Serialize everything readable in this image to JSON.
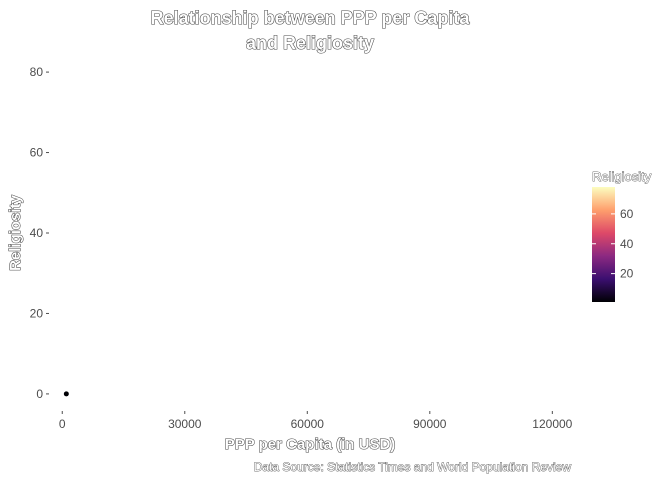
{
  "chart_data": {
    "type": "scatter",
    "title": [
      "Relationship between PPP per Capita",
      "and Religiosity"
    ],
    "xlabel": "PPP per Capita (in USD)",
    "ylabel": "Religiosity",
    "caption": "Data Source: Statistics Times and World Population Review",
    "x_ticks": [
      0,
      30000,
      60000,
      90000,
      120000
    ],
    "y_ticks": [
      0,
      20,
      40,
      60,
      80
    ],
    "xlim": [
      -3000,
      128000
    ],
    "ylim": [
      -4,
      84
    ],
    "grid": false,
    "points": [
      {
        "x": 1000,
        "y": 0,
        "color": "#000004"
      }
    ],
    "legend": {
      "title": "Religiosity",
      "placement": "right",
      "range": [
        1,
        78
      ],
      "ticks": [
        20,
        40,
        60
      ],
      "gradient": [
        "#000004",
        "#3b0f70",
        "#8c2981",
        "#de4968",
        "#fe9f6d",
        "#fcfdbf"
      ]
    }
  }
}
